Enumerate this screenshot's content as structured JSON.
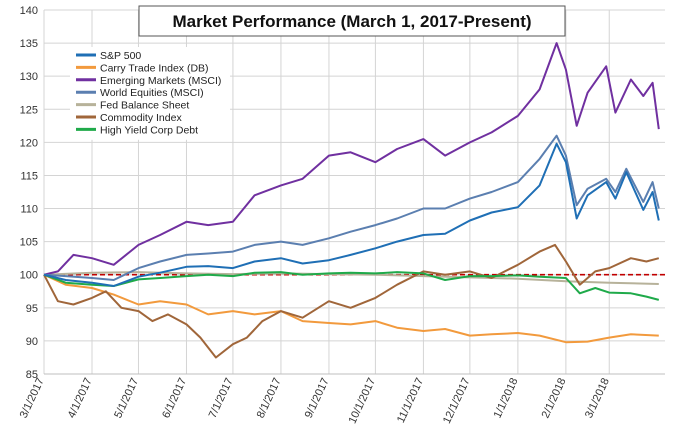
{
  "chart_data": {
    "type": "line",
    "title": "Market Performance (March 1, 2017-Present)",
    "xlabel": "",
    "ylabel": "",
    "ylim": [
      85,
      140
    ],
    "yticks": [
      85,
      90,
      95,
      100,
      105,
      110,
      115,
      120,
      125,
      130,
      135,
      140
    ],
    "xlim": [
      "2017-03-01",
      "2018-04-06"
    ],
    "xticks": [
      {
        "date": "2017-03-01",
        "label": "3/1/2017"
      },
      {
        "date": "2017-04-01",
        "label": "4/1/2017"
      },
      {
        "date": "2017-05-01",
        "label": "5/1/2017"
      },
      {
        "date": "2017-06-01",
        "label": "6/1/2017"
      },
      {
        "date": "2017-07-01",
        "label": "7/1/2017"
      },
      {
        "date": "2017-08-01",
        "label": "8/1/2017"
      },
      {
        "date": "2017-09-01",
        "label": "9/1/2017"
      },
      {
        "date": "2017-10-01",
        "label": "10/1/2017"
      },
      {
        "date": "2017-11-01",
        "label": "11/1/2017"
      },
      {
        "date": "2017-12-01",
        "label": "12/1/2017"
      },
      {
        "date": "2018-01-01",
        "label": "1/1/2018"
      },
      {
        "date": "2018-02-01",
        "label": "2/1/2018"
      },
      {
        "date": "2018-03-01",
        "label": "3/1/2018"
      }
    ],
    "grid": true,
    "legend_position": "top-left",
    "reference_line": {
      "y": 100,
      "color": "#c00000",
      "style": "dashed"
    },
    "series": [
      {
        "name": "S&P 500",
        "color": "#1f6fb5",
        "points": [
          [
            "2017-03-01",
            100
          ],
          [
            "2017-03-15",
            99.2
          ],
          [
            "2017-04-01",
            98.8
          ],
          [
            "2017-04-15",
            98.3
          ],
          [
            "2017-05-01",
            99.7
          ],
          [
            "2017-05-15",
            100.3
          ],
          [
            "2017-06-01",
            101.2
          ],
          [
            "2017-06-15",
            101.3
          ],
          [
            "2017-07-01",
            101.0
          ],
          [
            "2017-07-15",
            102.0
          ],
          [
            "2017-08-01",
            102.5
          ],
          [
            "2017-08-15",
            101.7
          ],
          [
            "2017-09-01",
            102.2
          ],
          [
            "2017-09-15",
            103.0
          ],
          [
            "2017-10-01",
            104.0
          ],
          [
            "2017-10-15",
            105.0
          ],
          [
            "2017-11-01",
            106.0
          ],
          [
            "2017-11-15",
            106.2
          ],
          [
            "2017-12-01",
            108.2
          ],
          [
            "2017-12-15",
            109.4
          ],
          [
            "2018-01-01",
            110.2
          ],
          [
            "2018-01-15",
            113.5
          ],
          [
            "2018-01-26",
            119.8
          ],
          [
            "2018-02-01",
            117.0
          ],
          [
            "2018-02-08",
            108.5
          ],
          [
            "2018-02-15",
            112.0
          ],
          [
            "2018-02-27",
            114.0
          ],
          [
            "2018-03-05",
            111.5
          ],
          [
            "2018-03-12",
            115.5
          ],
          [
            "2018-03-23",
            109.8
          ],
          [
            "2018-03-29",
            112.5
          ],
          [
            "2018-04-02",
            108.2
          ]
        ]
      },
      {
        "name": "Carry Trade Index (DB)",
        "color": "#f29a3d",
        "points": [
          [
            "2017-03-01",
            100
          ],
          [
            "2017-03-15",
            98.5
          ],
          [
            "2017-04-01",
            98.0
          ],
          [
            "2017-04-15",
            97.0
          ],
          [
            "2017-05-01",
            95.5
          ],
          [
            "2017-05-15",
            96.0
          ],
          [
            "2017-06-01",
            95.5
          ],
          [
            "2017-06-15",
            94.0
          ],
          [
            "2017-07-01",
            94.5
          ],
          [
            "2017-07-15",
            94.0
          ],
          [
            "2017-08-01",
            94.5
          ],
          [
            "2017-08-15",
            93.0
          ],
          [
            "2017-09-01",
            92.7
          ],
          [
            "2017-09-15",
            92.5
          ],
          [
            "2017-10-01",
            93.0
          ],
          [
            "2017-10-15",
            92.0
          ],
          [
            "2017-11-01",
            91.5
          ],
          [
            "2017-11-15",
            91.8
          ],
          [
            "2017-12-01",
            90.8
          ],
          [
            "2017-12-15",
            91.0
          ],
          [
            "2018-01-01",
            91.2
          ],
          [
            "2018-01-15",
            90.8
          ],
          [
            "2018-02-01",
            89.8
          ],
          [
            "2018-02-15",
            89.9
          ],
          [
            "2018-03-01",
            90.5
          ],
          [
            "2018-03-15",
            91.0
          ],
          [
            "2018-04-02",
            90.8
          ]
        ]
      },
      {
        "name": "Emerging Markets (MSCI)",
        "color": "#7030a0",
        "points": [
          [
            "2017-03-01",
            100
          ],
          [
            "2017-03-10",
            100.5
          ],
          [
            "2017-03-20",
            103.0
          ],
          [
            "2017-04-01",
            102.5
          ],
          [
            "2017-04-15",
            101.5
          ],
          [
            "2017-05-01",
            104.5
          ],
          [
            "2017-05-15",
            106.0
          ],
          [
            "2017-06-01",
            108.0
          ],
          [
            "2017-06-15",
            107.5
          ],
          [
            "2017-07-01",
            108.0
          ],
          [
            "2017-07-15",
            112.0
          ],
          [
            "2017-08-01",
            113.5
          ],
          [
            "2017-08-15",
            114.5
          ],
          [
            "2017-09-01",
            118.0
          ],
          [
            "2017-09-15",
            118.5
          ],
          [
            "2017-10-01",
            117.0
          ],
          [
            "2017-10-15",
            119.0
          ],
          [
            "2017-11-01",
            120.5
          ],
          [
            "2017-11-15",
            118.0
          ],
          [
            "2017-12-01",
            120.0
          ],
          [
            "2017-12-15",
            121.5
          ],
          [
            "2018-01-01",
            124.0
          ],
          [
            "2018-01-15",
            128.0
          ],
          [
            "2018-01-26",
            135.0
          ],
          [
            "2018-02-01",
            131.0
          ],
          [
            "2018-02-08",
            122.5
          ],
          [
            "2018-02-15",
            127.5
          ],
          [
            "2018-02-27",
            131.5
          ],
          [
            "2018-03-05",
            124.5
          ],
          [
            "2018-03-15",
            129.5
          ],
          [
            "2018-03-23",
            127.0
          ],
          [
            "2018-03-29",
            129.0
          ],
          [
            "2018-04-02",
            122.0
          ]
        ]
      },
      {
        "name": "World Equities (MSCI)",
        "color": "#5b7fb0",
        "points": [
          [
            "2017-03-01",
            100
          ],
          [
            "2017-03-15",
            99.8
          ],
          [
            "2017-04-01",
            99.5
          ],
          [
            "2017-04-15",
            99.2
          ],
          [
            "2017-05-01",
            101.0
          ],
          [
            "2017-05-15",
            102.0
          ],
          [
            "2017-06-01",
            103.0
          ],
          [
            "2017-06-15",
            103.2
          ],
          [
            "2017-07-01",
            103.5
          ],
          [
            "2017-07-15",
            104.5
          ],
          [
            "2017-08-01",
            105.0
          ],
          [
            "2017-08-15",
            104.5
          ],
          [
            "2017-09-01",
            105.5
          ],
          [
            "2017-09-15",
            106.5
          ],
          [
            "2017-10-01",
            107.5
          ],
          [
            "2017-10-15",
            108.5
          ],
          [
            "2017-11-01",
            110.0
          ],
          [
            "2017-11-15",
            110.0
          ],
          [
            "2017-12-01",
            111.5
          ],
          [
            "2017-12-15",
            112.5
          ],
          [
            "2018-01-01",
            114.0
          ],
          [
            "2018-01-15",
            117.5
          ],
          [
            "2018-01-26",
            121.0
          ],
          [
            "2018-02-01",
            118.0
          ],
          [
            "2018-02-08",
            110.5
          ],
          [
            "2018-02-15",
            113.0
          ],
          [
            "2018-02-27",
            114.5
          ],
          [
            "2018-03-05",
            112.5
          ],
          [
            "2018-03-12",
            116.0
          ],
          [
            "2018-03-23",
            111.0
          ],
          [
            "2018-03-29",
            114.0
          ],
          [
            "2018-04-02",
            110.0
          ]
        ]
      },
      {
        "name": "Fed Balance Sheet",
        "color": "#b7b29a",
        "points": [
          [
            "2017-03-01",
            100
          ],
          [
            "2017-04-01",
            100.3
          ],
          [
            "2017-05-01",
            100.4
          ],
          [
            "2017-06-01",
            100.2
          ],
          [
            "2017-07-01",
            100.1
          ],
          [
            "2017-08-01",
            100.2
          ],
          [
            "2017-09-01",
            100.1
          ],
          [
            "2017-10-01",
            100.0
          ],
          [
            "2017-11-01",
            99.8
          ],
          [
            "2017-12-01",
            99.6
          ],
          [
            "2018-01-01",
            99.4
          ],
          [
            "2018-02-01",
            99.0
          ],
          [
            "2018-03-01",
            98.8
          ],
          [
            "2018-04-02",
            98.6
          ]
        ]
      },
      {
        "name": "Commodity Index",
        "color": "#a0663a",
        "points": [
          [
            "2017-03-01",
            100
          ],
          [
            "2017-03-10",
            96.0
          ],
          [
            "2017-03-20",
            95.5
          ],
          [
            "2017-04-01",
            96.5
          ],
          [
            "2017-04-10",
            97.5
          ],
          [
            "2017-04-20",
            95.0
          ],
          [
            "2017-05-01",
            94.5
          ],
          [
            "2017-05-10",
            93.0
          ],
          [
            "2017-05-20",
            94.0
          ],
          [
            "2017-06-01",
            92.5
          ],
          [
            "2017-06-10",
            90.5
          ],
          [
            "2017-06-20",
            87.5
          ],
          [
            "2017-07-01",
            89.5
          ],
          [
            "2017-07-10",
            90.5
          ],
          [
            "2017-07-20",
            93.0
          ],
          [
            "2017-08-01",
            94.5
          ],
          [
            "2017-08-15",
            93.5
          ],
          [
            "2017-09-01",
            96.0
          ],
          [
            "2017-09-15",
            95.0
          ],
          [
            "2017-10-01",
            96.5
          ],
          [
            "2017-10-15",
            98.5
          ],
          [
            "2017-11-01",
            100.5
          ],
          [
            "2017-11-15",
            100.0
          ],
          [
            "2017-12-01",
            100.5
          ],
          [
            "2017-12-15",
            99.5
          ],
          [
            "2018-01-01",
            101.5
          ],
          [
            "2018-01-15",
            103.5
          ],
          [
            "2018-01-25",
            104.5
          ],
          [
            "2018-02-01",
            102.0
          ],
          [
            "2018-02-10",
            98.5
          ],
          [
            "2018-02-20",
            100.5
          ],
          [
            "2018-03-01",
            101.0
          ],
          [
            "2018-03-15",
            102.5
          ],
          [
            "2018-03-25",
            102.0
          ],
          [
            "2018-04-02",
            102.5
          ]
        ]
      },
      {
        "name": "High Yield Corp Debt",
        "color": "#1faa4a",
        "points": [
          [
            "2017-03-01",
            100
          ],
          [
            "2017-03-15",
            98.8
          ],
          [
            "2017-04-01",
            98.5
          ],
          [
            "2017-04-15",
            98.3
          ],
          [
            "2017-05-01",
            99.3
          ],
          [
            "2017-05-15",
            99.5
          ],
          [
            "2017-06-01",
            99.8
          ],
          [
            "2017-06-15",
            100.0
          ],
          [
            "2017-07-01",
            99.8
          ],
          [
            "2017-07-15",
            100.3
          ],
          [
            "2017-08-01",
            100.4
          ],
          [
            "2017-08-15",
            100.0
          ],
          [
            "2017-09-01",
            100.2
          ],
          [
            "2017-09-15",
            100.3
          ],
          [
            "2017-10-01",
            100.2
          ],
          [
            "2017-10-15",
            100.4
          ],
          [
            "2017-11-01",
            100.2
          ],
          [
            "2017-11-15",
            99.2
          ],
          [
            "2017-12-01",
            99.8
          ],
          [
            "2017-12-15",
            99.8
          ],
          [
            "2018-01-01",
            99.9
          ],
          [
            "2018-01-15",
            99.7
          ],
          [
            "2018-02-01",
            99.5
          ],
          [
            "2018-02-10",
            97.2
          ],
          [
            "2018-02-20",
            98.0
          ],
          [
            "2018-03-01",
            97.3
          ],
          [
            "2018-03-15",
            97.2
          ],
          [
            "2018-03-25",
            96.7
          ],
          [
            "2018-04-02",
            96.2
          ]
        ]
      }
    ]
  }
}
